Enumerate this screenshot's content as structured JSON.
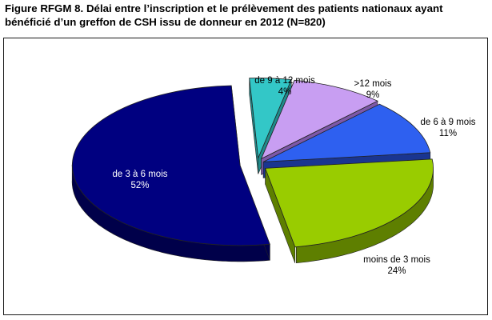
{
  "figure": {
    "title_line1": "Figure RFGM 8. Délai entre l’inscription et le prélèvement des patients nationaux ayant",
    "title_line2": "bénéficié d’un greffon de CSH issu de donneur en 2012 (N=820)"
  },
  "chart_data": {
    "type": "pie",
    "style": "3d-exploded",
    "slices": [
      {
        "label": "de 9 à 12 mois",
        "value": 4,
        "value_label": "4%",
        "color": "#33c7c7",
        "side_color": "#1f8b8b",
        "label_color": "#000000"
      },
      {
        "label": ">12 mois",
        "value": 9,
        "value_label": "9%",
        "color": "#c89ef2",
        "side_color": "#7d58a8",
        "label_color": "#000000"
      },
      {
        "label": "de 6 à 9 mois",
        "value": 11,
        "value_label": "11%",
        "color": "#2e60f0",
        "side_color": "#1a3590",
        "label_color": "#000000"
      },
      {
        "label": "moins de 3 mois",
        "value": 24,
        "value_label": "24%",
        "color": "#99cc00",
        "side_color": "#5e7f00",
        "label_color": "#000000"
      },
      {
        "label": "de 3 à 6 mois",
        "value": 52,
        "value_label": "52%",
        "color": "#000080",
        "side_color": "#00004a",
        "label_color": "#ffffff"
      }
    ]
  }
}
